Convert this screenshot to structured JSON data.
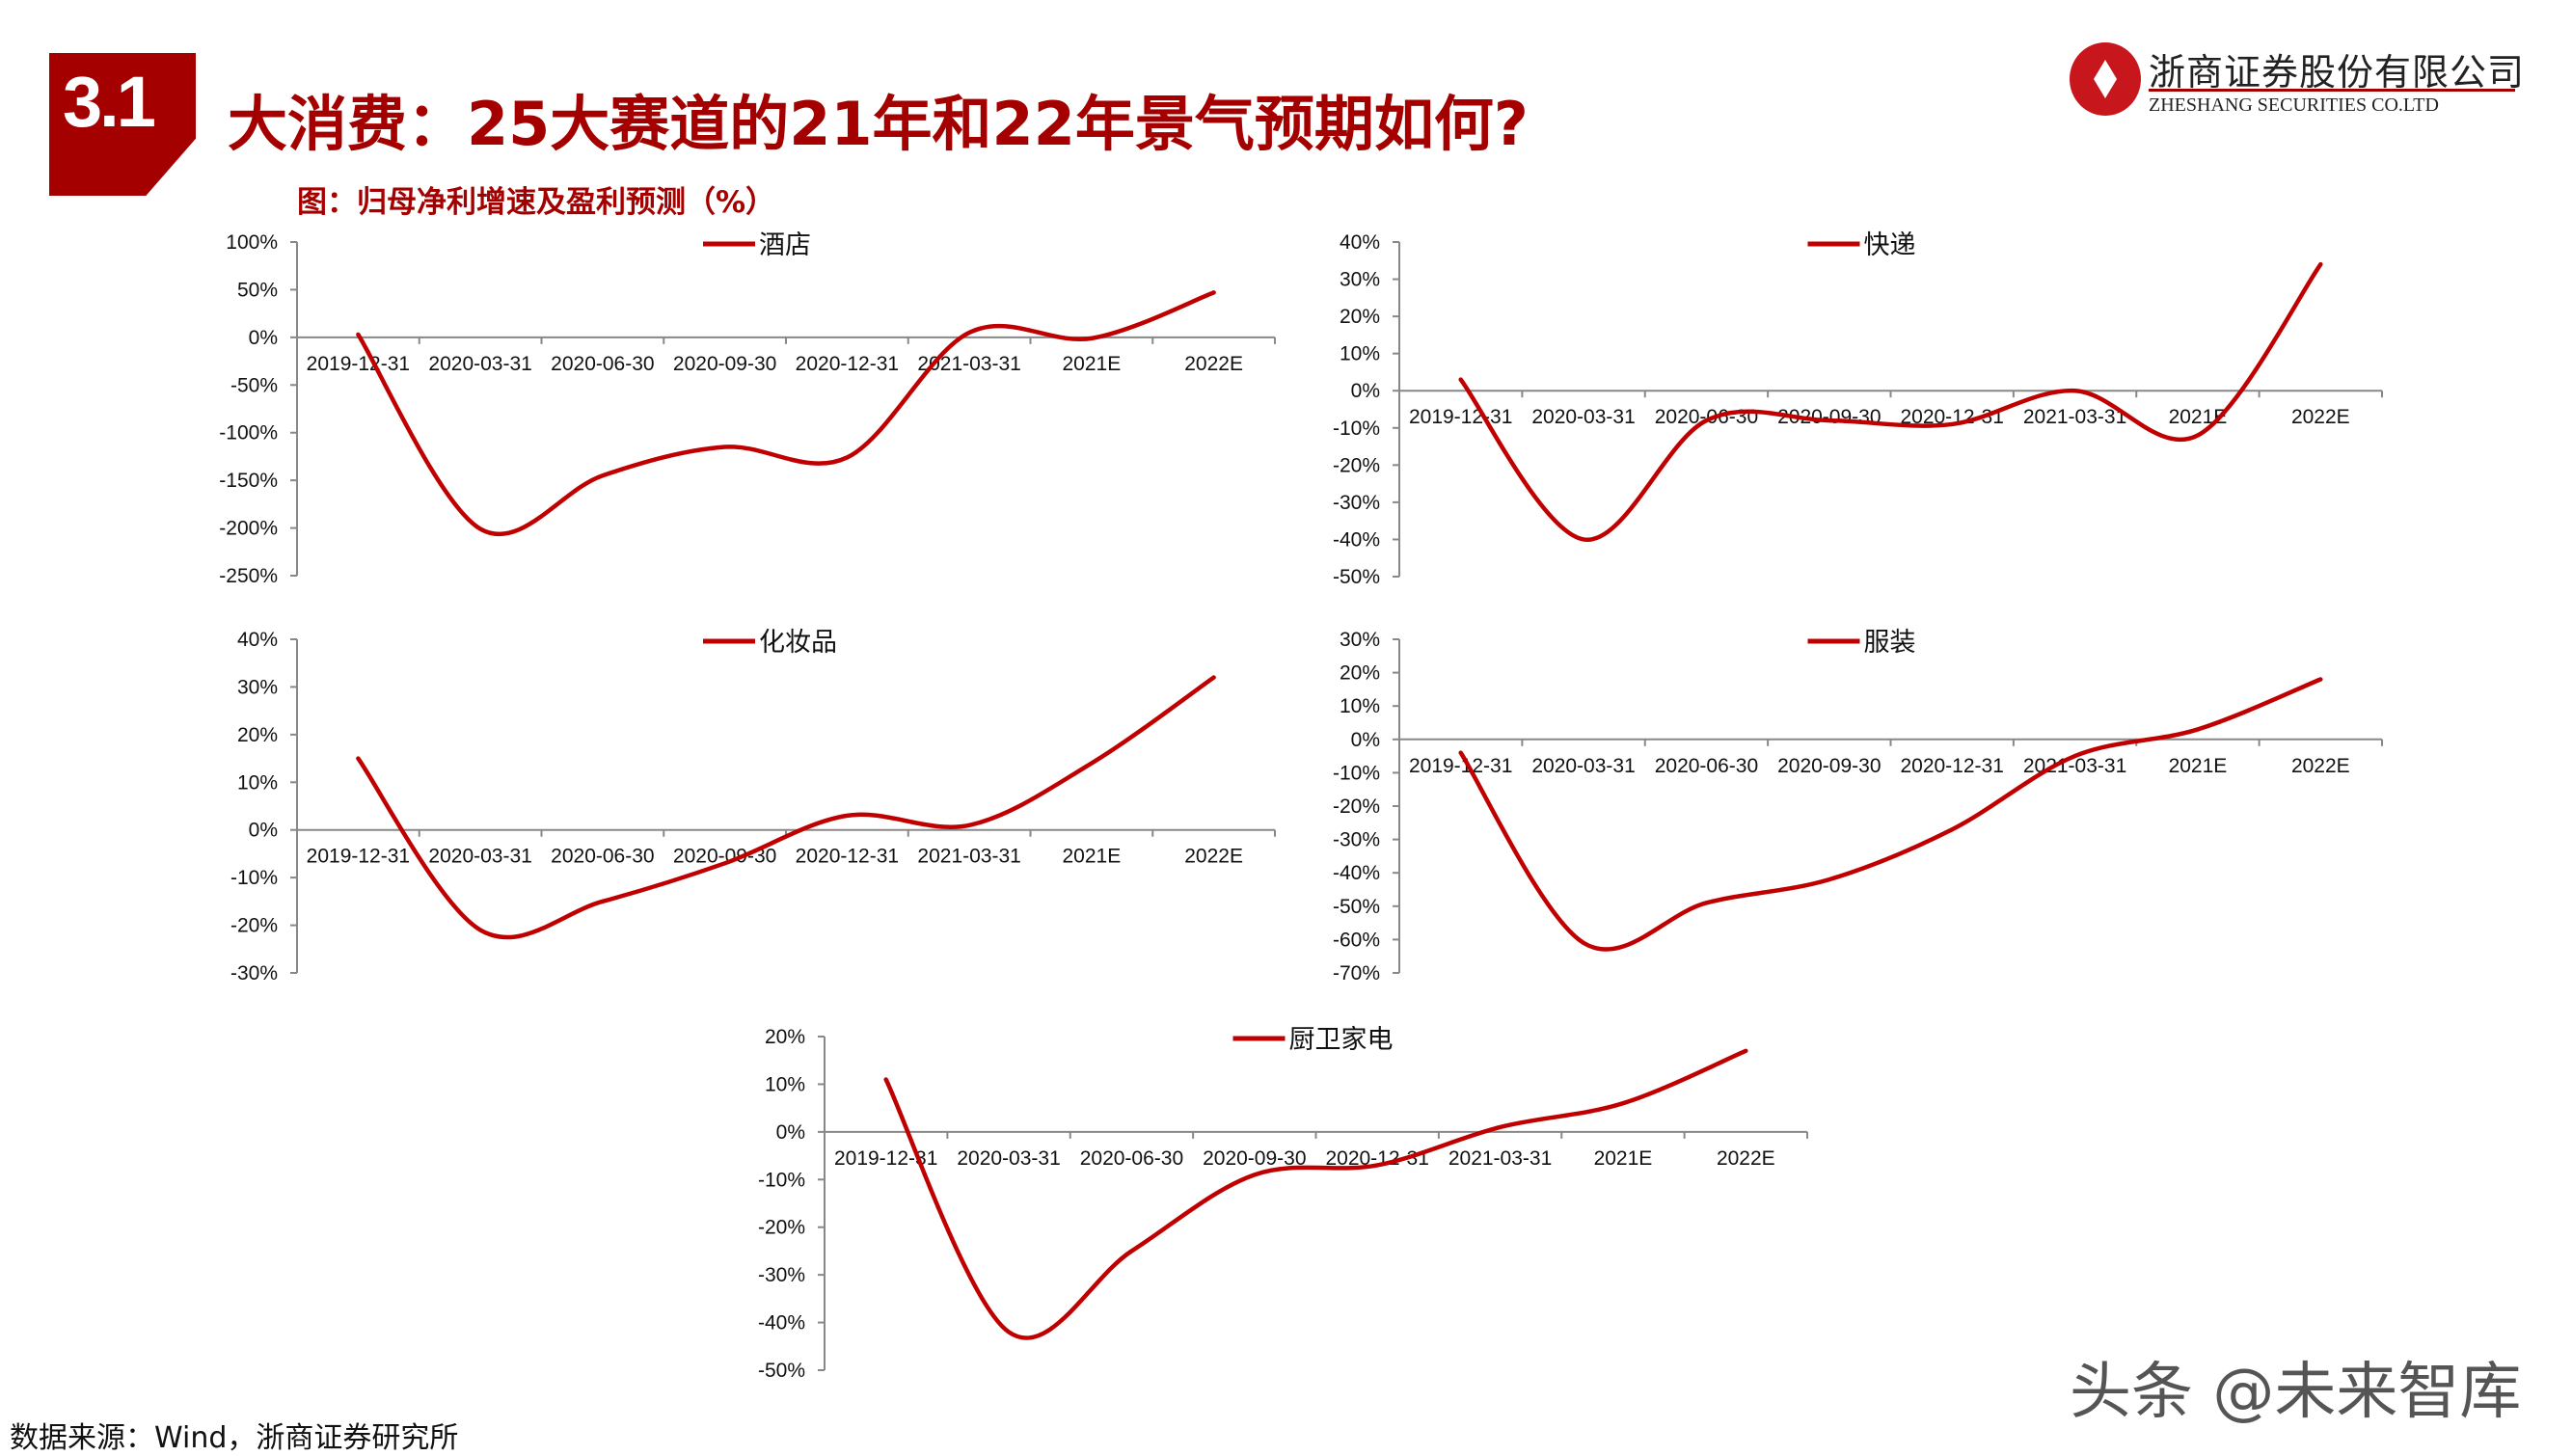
{
  "header": {
    "section_number": "3.1",
    "title": "大消费：25大赛道的21年和22年景气预期如何?",
    "subtitle": "图：归母净利增速及盈利预测（%）"
  },
  "logo": {
    "name_cn": "浙商证券股份有限公司",
    "name_en": "ZHESHANG SECURITIES CO.LTD"
  },
  "footer": {
    "source": "数据来源：Wind，浙商证券研究所",
    "watermark": "头条 @未来智库"
  },
  "colors": {
    "series": "#c00000",
    "accent": "#a50000",
    "axis": "#888888"
  },
  "chart_data": [
    {
      "type": "line",
      "series": [
        {
          "name": "酒店",
          "values": [
            3,
            -201,
            -145,
            -115,
            -126,
            5,
            -1,
            47
          ]
        }
      ],
      "categories": [
        "2019-12-31",
        "2020-03-31",
        "2020-06-30",
        "2020-09-30",
        "2020-12-31",
        "2021-03-31",
        "2021E",
        "2022E"
      ],
      "yticks": [
        "100%",
        "50%",
        "0%",
        "-50%",
        "-100%",
        "-150%",
        "-200%",
        "-250%"
      ],
      "ylim": [
        -250,
        100
      ],
      "legend": "top-center",
      "grid": false
    },
    {
      "type": "line",
      "series": [
        {
          "name": "快递",
          "values": [
            3,
            -40,
            -8,
            -8,
            -9,
            0,
            -12,
            34
          ]
        }
      ],
      "categories": [
        "2019-12-31",
        "2020-03-31",
        "2020-06-30",
        "2020-09-30",
        "2020-12-31",
        "2021-03-31",
        "2021E",
        "2022E"
      ],
      "yticks": [
        "40%",
        "30%",
        "20%",
        "10%",
        "0%",
        "-10%",
        "-20%",
        "-30%",
        "-40%",
        "-50%"
      ],
      "ylim": [
        -50,
        40
      ],
      "legend": "top-center",
      "grid": false
    },
    {
      "type": "line",
      "series": [
        {
          "name": "化妆品",
          "values": [
            15,
            -21,
            -15,
            -7,
            3,
            1,
            14,
            32
          ]
        }
      ],
      "categories": [
        "2019-12-31",
        "2020-03-31",
        "2020-06-30",
        "2020-09-30",
        "2020-12-31",
        "2021-03-31",
        "2021E",
        "2022E"
      ],
      "yticks": [
        "40%",
        "30%",
        "20%",
        "10%",
        "0%",
        "-10%",
        "-20%",
        "-30%"
      ],
      "ylim": [
        -30,
        40
      ],
      "legend": "top-center",
      "grid": false
    },
    {
      "type": "line",
      "series": [
        {
          "name": "服装",
          "values": [
            -4,
            -61,
            -49,
            -42,
            -27,
            -5,
            3,
            18
          ]
        }
      ],
      "categories": [
        "2019-12-31",
        "2020-03-31",
        "2020-06-30",
        "2020-09-30",
        "2020-12-31",
        "2021-03-31",
        "2021E",
        "2022E"
      ],
      "yticks": [
        "30%",
        "20%",
        "10%",
        "0%",
        "-10%",
        "-20%",
        "-30%",
        "-40%",
        "-50%",
        "-60%",
        "-70%"
      ],
      "ylim": [
        -70,
        30
      ],
      "legend": "top-center",
      "grid": false
    },
    {
      "type": "line",
      "series": [
        {
          "name": "厨卫家电",
          "values": [
            11,
            -42,
            -25,
            -9,
            -7,
            1,
            6,
            17
          ]
        }
      ],
      "categories": [
        "2019-12-31",
        "2020-03-31",
        "2020-06-30",
        "2020-09-30",
        "2020-12-31",
        "2021-03-31",
        "2021E",
        "2022E"
      ],
      "yticks": [
        "20%",
        "10%",
        "0%",
        "-10%",
        "-20%",
        "-30%",
        "-40%",
        "-50%"
      ],
      "ylim": [
        -50,
        20
      ],
      "legend": "top-center",
      "grid": false
    }
  ]
}
